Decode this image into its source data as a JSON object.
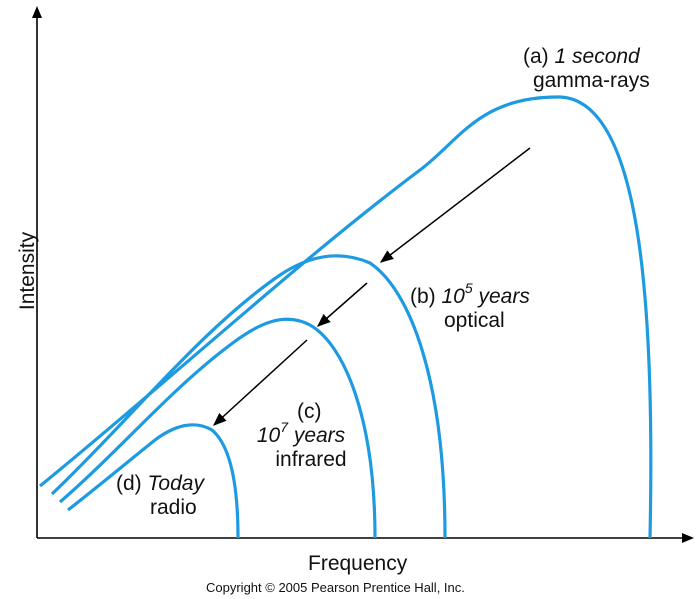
{
  "axes": {
    "xlabel": "Frequency",
    "ylabel": "Intensity"
  },
  "copyright": "Copyright © 2005 Pearson Prentice Hall, Inc.",
  "curves": [
    {
      "id": "a",
      "prefix": "(a) ",
      "era": "1 second",
      "band": "gamma-rays"
    },
    {
      "id": "b",
      "prefix": "(b) ",
      "era_base": "10",
      "era_exp": "5",
      "era_unit": " years",
      "band": "optical"
    },
    {
      "id": "c",
      "prefix": "(c)",
      "era_base": "10",
      "era_exp": "7",
      "era_unit": " years",
      "band": "infrared"
    },
    {
      "id": "d",
      "prefix": "(d) ",
      "era": "Today",
      "band": "radio"
    }
  ],
  "colors": {
    "curve": "#1e9be0",
    "axis": "#000000",
    "arrow": "#000000"
  }
}
